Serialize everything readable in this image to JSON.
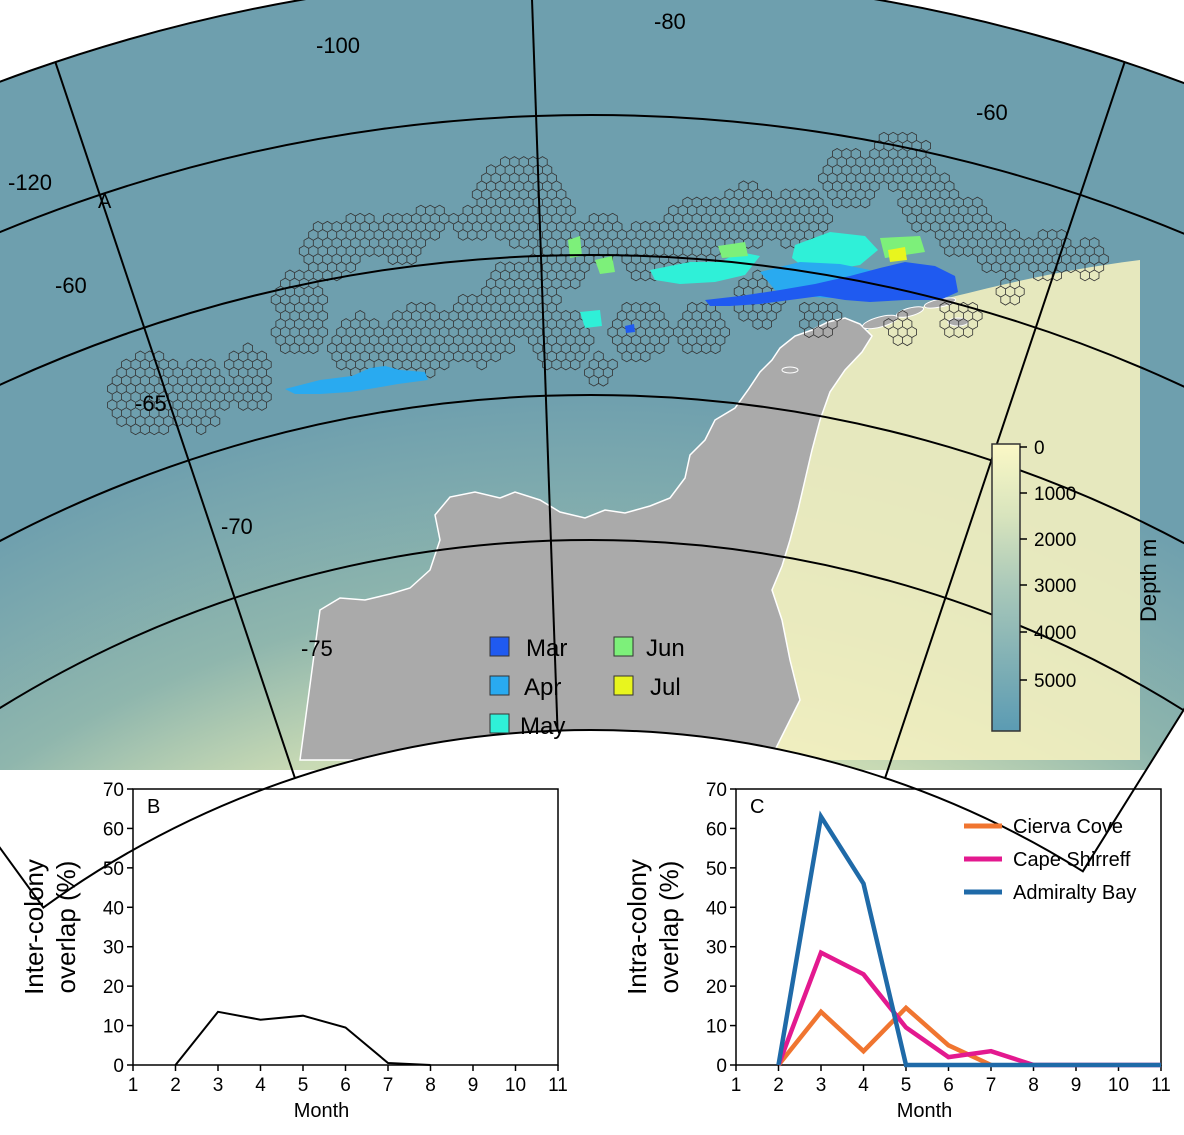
{
  "panel_a": {
    "label": "A",
    "longitude_labels": [
      "-120",
      "-100",
      "-80",
      "-60"
    ],
    "latitude_labels": [
      "-60",
      "-65",
      "-70",
      "-75"
    ],
    "legend": [
      {
        "label": "Mar",
        "color": "#1f5af0"
      },
      {
        "label": "Apr",
        "color": "#29aaf0"
      },
      {
        "label": "May",
        "color": "#2ff0d8"
      },
      {
        "label": "Jun",
        "color": "#7df07a"
      },
      {
        "label": "Jul",
        "color": "#e8f51e"
      }
    ],
    "colorbar": {
      "title": "Depth m",
      "ticks": [
        "0",
        "1000",
        "2000",
        "3000",
        "4000",
        "5000"
      ],
      "color_shallow": "#fbf8c6",
      "color_deep": "#5b9bb3"
    },
    "colors": {
      "land": "#aaaaaa",
      "ocean_deep": "#6e9fae",
      "ocean_shallow": "#f7f3c2",
      "grid_cell": "#333333"
    }
  },
  "chart_data": [
    {
      "type": "line",
      "panel_label": "B",
      "xlabel": "Month",
      "ylabel_lines": [
        "Inter-colony",
        "overlap (%)"
      ],
      "xlim": [
        1,
        11
      ],
      "ylim": [
        0,
        70
      ],
      "x_ticks": [
        1,
        2,
        3,
        4,
        5,
        6,
        7,
        8,
        9,
        10,
        11
      ],
      "y_ticks": [
        0,
        10,
        20,
        30,
        40,
        50,
        60,
        70
      ],
      "series": [
        {
          "x": [
            2,
            3,
            4,
            5,
            6,
            7,
            8
          ],
          "values": [
            0,
            13.5,
            11.5,
            12.5,
            9.5,
            0.5,
            0
          ],
          "color": "#000000"
        }
      ]
    },
    {
      "type": "line",
      "panel_label": "C",
      "xlabel": "Month",
      "ylabel_lines": [
        "Intra-colony",
        "overlap (%)"
      ],
      "xlim": [
        1,
        11
      ],
      "ylim": [
        0,
        70
      ],
      "x_ticks": [
        1,
        2,
        3,
        4,
        5,
        6,
        7,
        8,
        9,
        10,
        11
      ],
      "y_ticks": [
        0,
        10,
        20,
        30,
        40,
        50,
        60,
        70
      ],
      "legend_position": "top-right",
      "series": [
        {
          "name": "Cierva Cove",
          "x": [
            2,
            3,
            4,
            5,
            6,
            7
          ],
          "values": [
            0,
            13.5,
            3.5,
            14.5,
            5,
            0
          ],
          "color": "#f07530"
        },
        {
          "name": "Cape Shirreff",
          "x": [
            2,
            3,
            4,
            5,
            6,
            7,
            8,
            9,
            10,
            11
          ],
          "values": [
            0,
            28.5,
            23,
            9.5,
            2,
            3.5,
            0,
            0,
            0,
            0
          ],
          "color": "#e3198f"
        },
        {
          "name": "Admiralty Bay",
          "x": [
            2,
            3,
            4,
            5,
            6,
            7,
            8,
            9,
            10,
            11
          ],
          "values": [
            0,
            63,
            46,
            0,
            0,
            0,
            0,
            0,
            0,
            0
          ],
          "color": "#1f6aa8"
        }
      ]
    }
  ]
}
